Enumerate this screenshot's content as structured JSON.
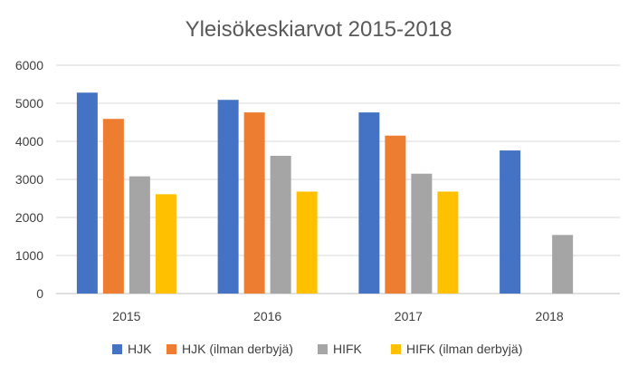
{
  "chart_data": {
    "type": "bar",
    "title": "Yleisökeskiarvot 2015-2018",
    "xlabel": "",
    "ylabel": "",
    "categories": [
      "2015",
      "2016",
      "2017",
      "2018"
    ],
    "ylim": [
      0,
      6000
    ],
    "yticks": [
      0,
      1000,
      2000,
      3000,
      4000,
      5000,
      6000
    ],
    "grid": true,
    "legend_position": "bottom",
    "series": [
      {
        "name": "HJK",
        "color": "#4472C4",
        "values": [
          5280,
          5090,
          4760,
          3760
        ]
      },
      {
        "name": "HJK (ilman derbyjä)",
        "color": "#ED7D31",
        "values": [
          4590,
          4760,
          4150,
          null
        ]
      },
      {
        "name": "HIFK",
        "color": "#A5A5A5",
        "values": [
          3080,
          3620,
          3150,
          1540
        ]
      },
      {
        "name": "HIFK (ilman derbyjä)",
        "color": "#FFC000",
        "values": [
          2610,
          2680,
          2680,
          null
        ]
      }
    ]
  }
}
